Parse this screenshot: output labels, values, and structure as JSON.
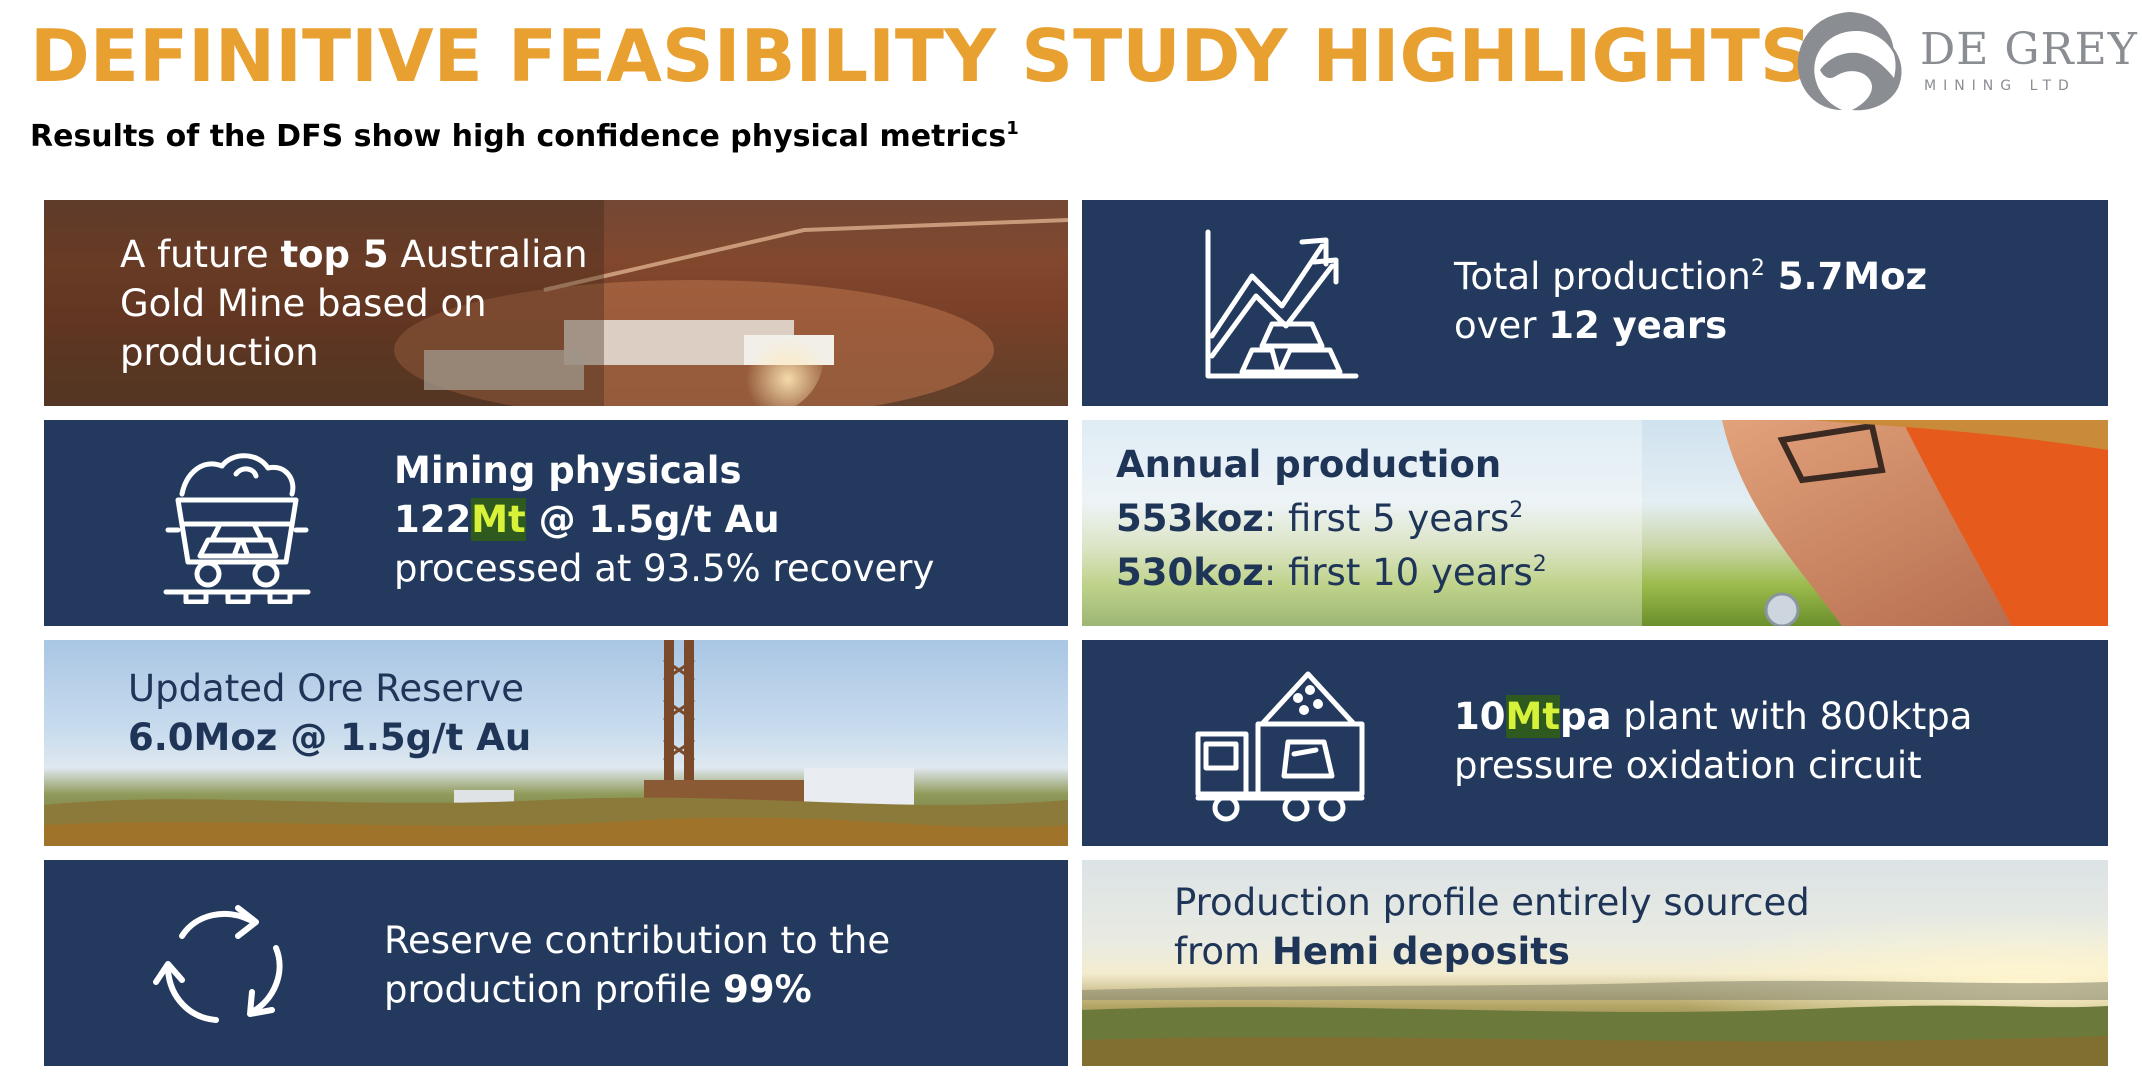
{
  "header": {
    "title": "DEFINITIVE FEASIBILITY STUDY HIGHLIGHTS",
    "subtitle": "Results of the DFS show high confidence physical metrics",
    "subtitle_sup": "1"
  },
  "logo": {
    "name": "DE GREY",
    "sub": "MINING LTD",
    "icon": "swoosh-logo-icon"
  },
  "colors": {
    "title_orange": "#e8a030",
    "panel_navy": "#233a5e",
    "highlight_green": "#d8f23a"
  },
  "panels": {
    "p1": {
      "l1a": "A future ",
      "l1b": "top 5",
      "l1c": " Australian",
      "l2": "Gold Mine based on",
      "l3": "production"
    },
    "p2": {
      "l1a": "Total production",
      "sup": "2",
      "l1b": " 5.7Moz",
      "l2a": "over ",
      "l2b": "12 years",
      "icon": "chart-gold-bars-icon"
    },
    "p3": {
      "l1": "Mining physicals",
      "l2a": "122",
      "l2b": "Mt",
      "l2c": " @ 1.5g/t Au",
      "l3": "processed at 93.5% recovery",
      "icon": "ore-cart-icon"
    },
    "p4": {
      "l1": "Annual production",
      "l2a": "553koz",
      "l2b": ": first 5 years",
      "sup1": "2",
      "l3a": "530koz",
      "l3b": ": first 10 years",
      "sup2": "2"
    },
    "p5": {
      "l1": "Updated Ore Reserve",
      "l2": "6.0Moz @ 1.5g/t Au"
    },
    "p6": {
      "l1a": "10",
      "l1b": "Mt",
      "l1c": "pa",
      "l1d": " plant with 800ktpa",
      "l2": "pressure oxidation circuit",
      "icon": "dump-truck-icon"
    },
    "p7": {
      "l1": "Reserve contribution to the",
      "l2a": "production profile ",
      "l2b": "99%",
      "icon": "recycle-arrows-icon"
    },
    "p8": {
      "l1": "Production profile entirely sourced",
      "l2a": "from ",
      "l2b": "Hemi deposits"
    }
  }
}
